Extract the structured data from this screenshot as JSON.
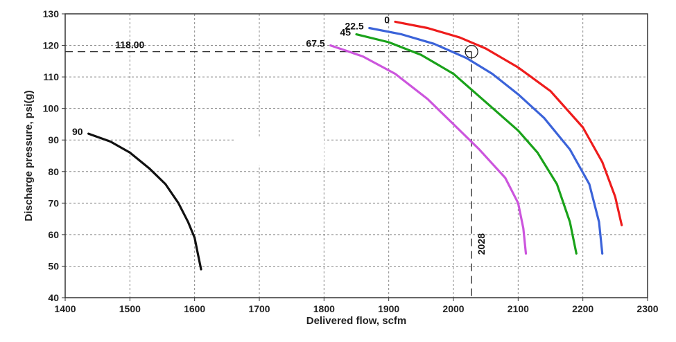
{
  "chart_data": {
    "type": "line",
    "xlabel": "Delivered flow, scfm",
    "ylabel": "Discharge pressure, psi(g)",
    "xlim": [
      1400,
      2300
    ],
    "ylim": [
      40,
      130
    ],
    "xticks": [
      1400,
      1500,
      1600,
      1700,
      1800,
      1900,
      2000,
      2100,
      2200,
      2300
    ],
    "yticks": [
      40,
      50,
      60,
      70,
      80,
      90,
      100,
      110,
      120,
      130
    ],
    "grid": true,
    "series": [
      {
        "name": "0",
        "color": "#ee1c1c",
        "points": [
          [
            1910,
            127.5
          ],
          [
            1960,
            125.5
          ],
          [
            2010,
            122.5
          ],
          [
            2050,
            119
          ],
          [
            2100,
            113
          ],
          [
            2150,
            105.5
          ],
          [
            2200,
            94
          ],
          [
            2230,
            83
          ],
          [
            2250,
            72
          ],
          [
            2260,
            63
          ]
        ]
      },
      {
        "name": "22.5",
        "color": "#3b63d9",
        "points": [
          [
            1870,
            125.5
          ],
          [
            1920,
            123.5
          ],
          [
            1970,
            120.5
          ],
          [
            2020,
            116
          ],
          [
            2060,
            111
          ],
          [
            2100,
            104.5
          ],
          [
            2140,
            97
          ],
          [
            2180,
            87
          ],
          [
            2210,
            76
          ],
          [
            2225,
            64
          ],
          [
            2230,
            54
          ]
        ]
      },
      {
        "name": "45",
        "color": "#1aa21a",
        "points": [
          [
            1850,
            123.5
          ],
          [
            1900,
            121
          ],
          [
            1950,
            117
          ],
          [
            2000,
            111
          ],
          [
            2050,
            102
          ],
          [
            2100,
            93
          ],
          [
            2130,
            86
          ],
          [
            2160,
            76
          ],
          [
            2180,
            64
          ],
          [
            2190,
            54
          ]
        ]
      },
      {
        "name": "67.5",
        "color": "#cc55dd",
        "points": [
          [
            1810,
            120
          ],
          [
            1860,
            116.5
          ],
          [
            1910,
            111
          ],
          [
            1960,
            103
          ],
          [
            2000,
            95
          ],
          [
            2040,
            87
          ],
          [
            2080,
            78
          ],
          [
            2100,
            70
          ],
          [
            2108,
            62
          ],
          [
            2112,
            54
          ]
        ]
      },
      {
        "name": "90",
        "color": "#111111",
        "points": [
          [
            1436,
            92
          ],
          [
            1470,
            89.5
          ],
          [
            1500,
            86
          ],
          [
            1530,
            81
          ],
          [
            1555,
            76
          ],
          [
            1575,
            70
          ],
          [
            1590,
            64
          ],
          [
            1600,
            59
          ],
          [
            1605,
            54
          ],
          [
            1610,
            49
          ]
        ]
      }
    ],
    "operating_point": {
      "x": 2028,
      "y": 118,
      "x_label": "2028",
      "y_label": "118.00"
    }
  }
}
